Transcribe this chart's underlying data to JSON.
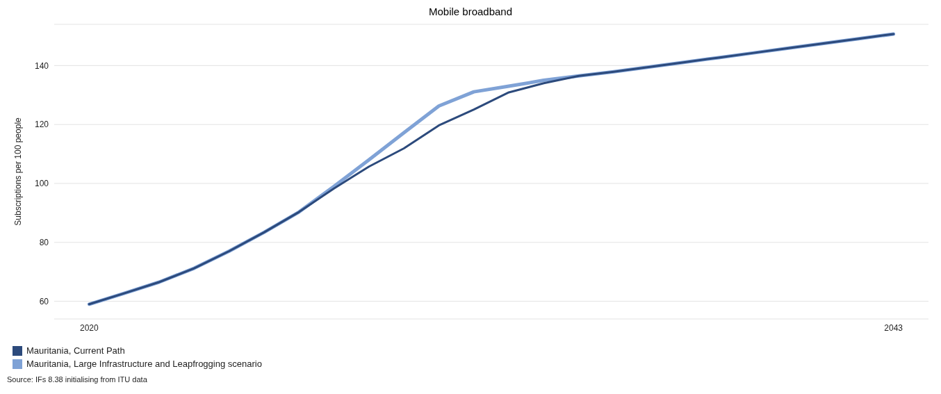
{
  "chart_data": {
    "type": "line",
    "title": "Mobile broadband",
    "ylabel": "Subscriptions per 100 people",
    "x": [
      2020,
      2021,
      2022,
      2023,
      2024,
      2025,
      2026,
      2027,
      2028,
      2029,
      2030,
      2031,
      2032,
      2033,
      2034,
      2035,
      2036,
      2037,
      2038,
      2039,
      2040,
      2041,
      2042,
      2043
    ],
    "series": [
      {
        "name": "Mauritania, Current Path",
        "color": "#2c4a7c",
        "values": [
          59,
          62.7,
          66.5,
          71.2,
          77,
          83.4,
          90.3,
          98.3,
          105.7,
          111.9,
          119.7,
          125.1,
          130.9,
          134,
          136.5,
          137.9,
          139.5,
          141.1,
          142.7,
          144.3,
          145.9,
          147.5,
          149.1,
          150.7
        ]
      },
      {
        "name": "Mauritania, Large Infrastructure and Leapfrogging scenario",
        "color": "#7fa2d6",
        "values": [
          59,
          62.7,
          66.5,
          71.2,
          77,
          83.4,
          90.3,
          99,
          108,
          117.2,
          126.3,
          131.1,
          133,
          135,
          136.5,
          137.9,
          139.5,
          141.1,
          142.7,
          144.3,
          145.9,
          147.5,
          149.1,
          150.7
        ]
      }
    ],
    "xlim": [
      2019,
      2044
    ],
    "xticks": [
      2020,
      2043
    ],
    "ylim": [
      54,
      154
    ],
    "yticks": [
      60,
      80,
      100,
      120,
      140
    ],
    "grid": "y",
    "legend": "bottom left",
    "marker": "none",
    "line_style": "solid",
    "annotations": [
      "Source: IFs 8.38 initialising from ITU data"
    ]
  }
}
